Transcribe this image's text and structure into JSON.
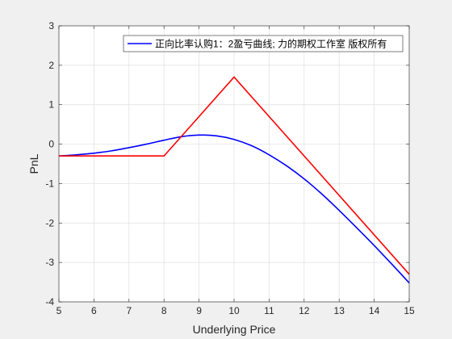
{
  "chart_data": {
    "type": "line",
    "title": "",
    "xlabel": "Underlying Price",
    "ylabel": "PnL",
    "xlim": [
      5,
      15
    ],
    "ylim": [
      -4,
      3
    ],
    "xticks": [
      "5",
      "6",
      "7",
      "8",
      "9",
      "10",
      "11",
      "12",
      "13",
      "14",
      "15"
    ],
    "yticks": [
      "-4",
      "-3",
      "-2",
      "-1",
      "0",
      "1",
      "2",
      "3"
    ],
    "grid": true,
    "legend_position": "top-right",
    "series": [
      {
        "name": "正向比率认购1：2盈亏曲线; 力的期权工作室 版权所有",
        "color": "#0000ff",
        "x": [
          5,
          5.5,
          6,
          6.5,
          7,
          7.5,
          8,
          8.5,
          9,
          9.5,
          10,
          10.5,
          11,
          11.5,
          12,
          12.5,
          13,
          13.5,
          14,
          14.5,
          15
        ],
        "y": [
          -0.3,
          -0.27,
          -0.23,
          -0.17,
          -0.09,
          0.0,
          0.1,
          0.19,
          0.23,
          0.21,
          0.12,
          -0.04,
          -0.27,
          -0.55,
          -0.88,
          -1.26,
          -1.68,
          -2.12,
          -2.57,
          -3.04,
          -3.52
        ]
      },
      {
        "name": "",
        "color": "#ff0000",
        "x": [
          5,
          8,
          10,
          15
        ],
        "y": [
          -0.3,
          -0.3,
          1.7,
          -3.3
        ]
      }
    ]
  }
}
